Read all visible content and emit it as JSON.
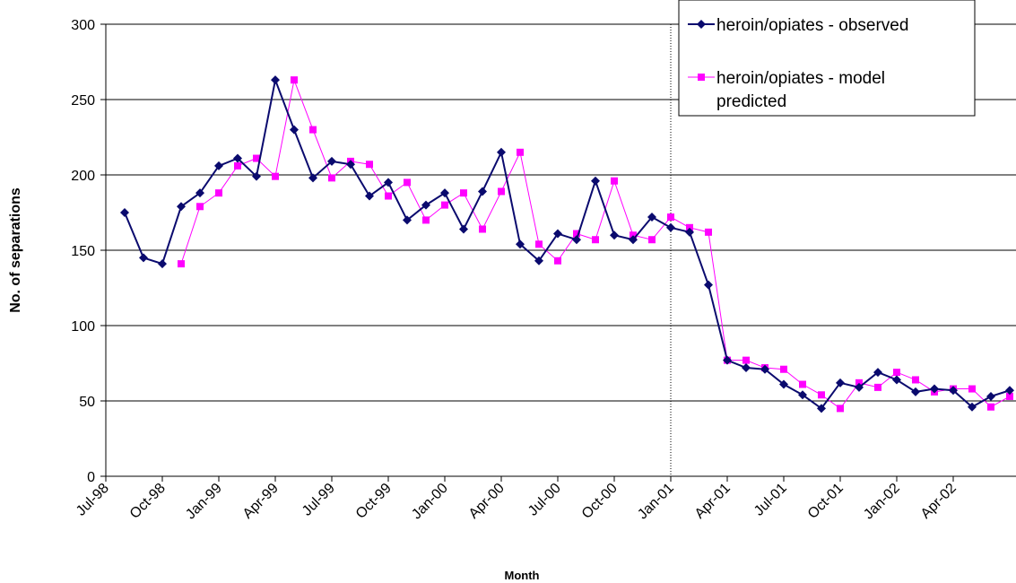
{
  "chart_data": {
    "type": "line",
    "title": "",
    "xlabel": "Month",
    "ylabel": "No. of separations",
    "ylim": [
      0,
      300
    ],
    "yticks": [
      "0",
      "50",
      "100",
      "150",
      "200",
      "250",
      "300"
    ],
    "xticks": [
      "Jul-98",
      "Oct-98",
      "Jan-99",
      "Apr-99",
      "Jul-99",
      "Oct-99",
      "Jan-00",
      "Apr-00",
      "Jul-00",
      "Oct-00",
      "Jan-01",
      "Apr-01",
      "Jul-01",
      "Oct-01",
      "Jan-02",
      "Apr-02"
    ],
    "x_start": "Jul-98",
    "grid": true,
    "legend_position": "top-right",
    "vertical_marker": "Jan-01",
    "series": [
      {
        "name": "heroin/opiates - observed",
        "color": "#0a0a6e",
        "marker": "diamond",
        "points": [
          {
            "month": "Aug-98",
            "value": 175
          },
          {
            "month": "Sep-98",
            "value": 145
          },
          {
            "month": "Oct-98",
            "value": 141
          },
          {
            "month": "Nov-98",
            "value": 179
          },
          {
            "month": "Dec-98",
            "value": 188
          },
          {
            "month": "Jan-99",
            "value": 206
          },
          {
            "month": "Feb-99",
            "value": 211
          },
          {
            "month": "Mar-99",
            "value": 199
          },
          {
            "month": "Apr-99",
            "value": 263
          },
          {
            "month": "May-99",
            "value": 230
          },
          {
            "month": "Jun-99",
            "value": 198
          },
          {
            "month": "Jul-99",
            "value": 209
          },
          {
            "month": "Aug-99",
            "value": 207
          },
          {
            "month": "Sep-99",
            "value": 186
          },
          {
            "month": "Oct-99",
            "value": 195
          },
          {
            "month": "Nov-99",
            "value": 170
          },
          {
            "month": "Dec-99",
            "value": 180
          },
          {
            "month": "Jan-00",
            "value": 188
          },
          {
            "month": "Feb-00",
            "value": 164
          },
          {
            "month": "Mar-00",
            "value": 189
          },
          {
            "month": "Apr-00",
            "value": 215
          },
          {
            "month": "May-00",
            "value": 154
          },
          {
            "month": "Jun-00",
            "value": 143
          },
          {
            "month": "Jul-00",
            "value": 161
          },
          {
            "month": "Aug-00",
            "value": 157
          },
          {
            "month": "Sep-00",
            "value": 196
          },
          {
            "month": "Oct-00",
            "value": 160
          },
          {
            "month": "Nov-00",
            "value": 157
          },
          {
            "month": "Dec-00",
            "value": 172
          },
          {
            "month": "Jan-01",
            "value": 165
          },
          {
            "month": "Feb-01",
            "value": 162
          },
          {
            "month": "Mar-01",
            "value": 127
          },
          {
            "month": "Apr-01",
            "value": 77
          },
          {
            "month": "May-01",
            "value": 72
          },
          {
            "month": "Jun-01",
            "value": 71
          },
          {
            "month": "Jul-01",
            "value": 61
          },
          {
            "month": "Aug-01",
            "value": 54
          },
          {
            "month": "Sep-01",
            "value": 45
          },
          {
            "month": "Oct-01",
            "value": 62
          },
          {
            "month": "Nov-01",
            "value": 59
          },
          {
            "month": "Dec-01",
            "value": 69
          },
          {
            "month": "Jan-02",
            "value": 64
          },
          {
            "month": "Feb-02",
            "value": 56
          },
          {
            "month": "Mar-02",
            "value": 58
          },
          {
            "month": "Apr-02",
            "value": 57
          },
          {
            "month": "May-02",
            "value": 46
          },
          {
            "month": "Jun-02",
            "value": 53
          },
          {
            "month": "Jul-02",
            "value": 57
          }
        ]
      },
      {
        "name": "heroin/opiates - model predicted",
        "color": "#ff00ff",
        "marker": "square",
        "points": [
          {
            "month": "Nov-98",
            "value": 141
          },
          {
            "month": "Dec-98",
            "value": 179
          },
          {
            "month": "Jan-99",
            "value": 188
          },
          {
            "month": "Feb-99",
            "value": 206
          },
          {
            "month": "Mar-99",
            "value": 211
          },
          {
            "month": "Apr-99",
            "value": 199
          },
          {
            "month": "May-99",
            "value": 263
          },
          {
            "month": "Jun-99",
            "value": 230
          },
          {
            "month": "Jul-99",
            "value": 198
          },
          {
            "month": "Aug-99",
            "value": 209
          },
          {
            "month": "Sep-99",
            "value": 207
          },
          {
            "month": "Oct-99",
            "value": 186
          },
          {
            "month": "Nov-99",
            "value": 195
          },
          {
            "month": "Dec-99",
            "value": 170
          },
          {
            "month": "Jan-00",
            "value": 180
          },
          {
            "month": "Feb-00",
            "value": 188
          },
          {
            "month": "Mar-00",
            "value": 164
          },
          {
            "month": "Apr-00",
            "value": 189
          },
          {
            "month": "May-00",
            "value": 215
          },
          {
            "month": "Jun-00",
            "value": 154
          },
          {
            "month": "Jul-00",
            "value": 143
          },
          {
            "month": "Aug-00",
            "value": 161
          },
          {
            "month": "Sep-00",
            "value": 157
          },
          {
            "month": "Oct-00",
            "value": 196
          },
          {
            "month": "Nov-00",
            "value": 160
          },
          {
            "month": "Dec-00",
            "value": 157
          },
          {
            "month": "Jan-01",
            "value": 172
          },
          {
            "month": "Feb-01",
            "value": 165
          },
          {
            "month": "Mar-01",
            "value": 162
          },
          {
            "month": "Apr-01",
            "value": 77
          },
          {
            "month": "May-01",
            "value": 77
          },
          {
            "month": "Jun-01",
            "value": 72
          },
          {
            "month": "Jul-01",
            "value": 71
          },
          {
            "month": "Aug-01",
            "value": 61
          },
          {
            "month": "Sep-01",
            "value": 54
          },
          {
            "month": "Oct-01",
            "value": 45
          },
          {
            "month": "Nov-01",
            "value": 62
          },
          {
            "month": "Dec-01",
            "value": 59
          },
          {
            "month": "Jan-02",
            "value": 69
          },
          {
            "month": "Feb-02",
            "value": 64
          },
          {
            "month": "Mar-02",
            "value": 56
          },
          {
            "month": "Apr-02",
            "value": 58
          },
          {
            "month": "May-02",
            "value": 58
          },
          {
            "month": "Jun-02",
            "value": 46
          },
          {
            "month": "Jul-02",
            "value": 53
          }
        ]
      }
    ],
    "legend": {
      "items": [
        {
          "lines": [
            "heroin/opiates - observed"
          ]
        },
        {
          "lines": [
            "heroin/opiates - model",
            "predicted"
          ]
        }
      ]
    }
  }
}
